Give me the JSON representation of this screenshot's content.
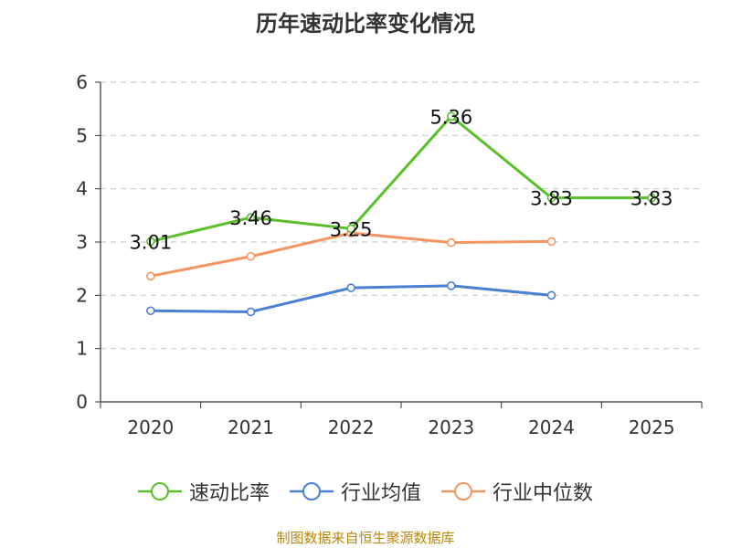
{
  "chart_data": {
    "type": "line",
    "title": "历年速动比率变化情况",
    "categories": [
      "2020",
      "2021",
      "2022",
      "2023",
      "2024",
      "2025"
    ],
    "ylim": [
      0,
      6
    ],
    "yticks": [
      0,
      1,
      2,
      3,
      4,
      5,
      6
    ],
    "grid": true,
    "legend_position": "bottom",
    "series": [
      {
        "name": "速动比率",
        "color": "#5bbf2a",
        "values": [
          3.01,
          3.46,
          3.25,
          5.36,
          3.83,
          3.83
        ],
        "labels": [
          "3.01",
          "3.46",
          "3.25",
          "5.36",
          "3.83",
          "3.83"
        ]
      },
      {
        "name": "行业均值",
        "color": "#4a7fd6",
        "values": [
          1.71,
          1.69,
          2.14,
          2.18,
          2.0,
          null
        ]
      },
      {
        "name": "行业中位数",
        "color": "#f59562",
        "values": [
          2.36,
          2.73,
          3.17,
          2.99,
          3.01,
          null
        ]
      }
    ],
    "source": "制图数据来自恒生聚源数据库"
  }
}
